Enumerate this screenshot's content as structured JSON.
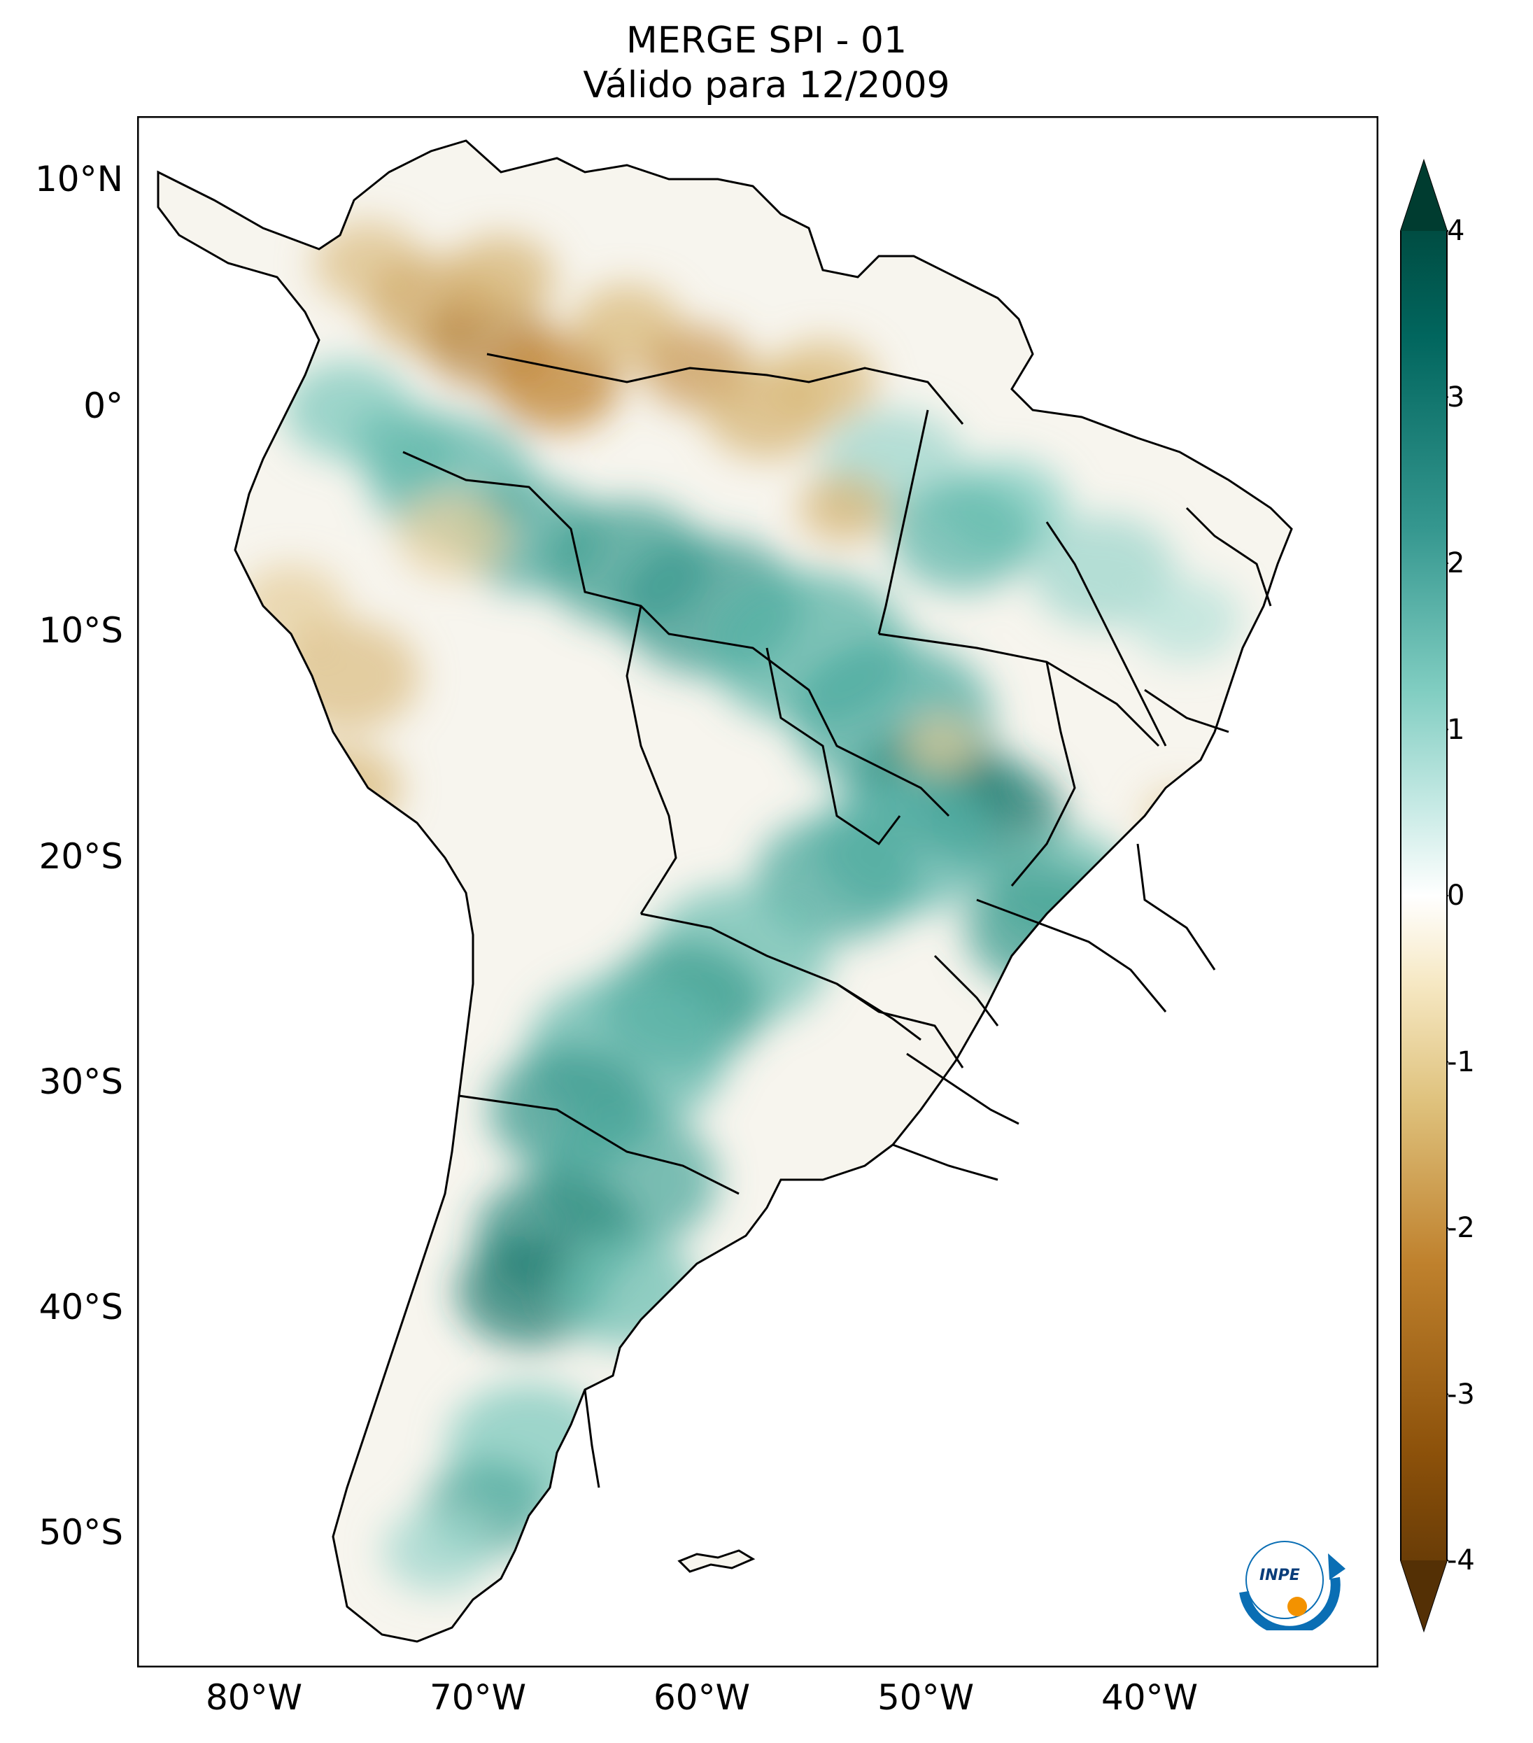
{
  "title": {
    "line1": "MERGE   SPI - 01",
    "line2": "Válido para 12/2009"
  },
  "map": {
    "region": "South America",
    "lat_range": [
      -56,
      12.5
    ],
    "lon_range": [
      -85,
      -29.5
    ],
    "lat_ticks": [
      {
        "value": 10,
        "label": "10°N"
      },
      {
        "value": 0,
        "label": "0°"
      },
      {
        "value": -10,
        "label": "10°S"
      },
      {
        "value": -20,
        "label": "20°S"
      },
      {
        "value": -30,
        "label": "30°S"
      },
      {
        "value": -40,
        "label": "40°S"
      },
      {
        "value": -50,
        "label": "50°S"
      }
    ],
    "lon_ticks": [
      {
        "value": -80,
        "label": "80°W"
      },
      {
        "value": -70,
        "label": "70°W"
      },
      {
        "value": -60,
        "label": "60°W"
      },
      {
        "value": -50,
        "label": "50°W"
      },
      {
        "value": -40,
        "label": "40°W"
      }
    ]
  },
  "colorbar": {
    "colormap": "BrBG",
    "range": [
      -4,
      4
    ],
    "extend": "both",
    "ticks": [
      {
        "value": 4,
        "label": "4"
      },
      {
        "value": 3,
        "label": "3"
      },
      {
        "value": 2,
        "label": "2"
      },
      {
        "value": 1,
        "label": "1"
      },
      {
        "value": 0,
        "label": "0"
      },
      {
        "value": -1,
        "label": "-1"
      },
      {
        "value": -2,
        "label": "-2"
      },
      {
        "value": -3,
        "label": "-3"
      },
      {
        "value": -4,
        "label": "-4"
      }
    ],
    "colors": [
      "#543005",
      "#8c510a",
      "#bf812d",
      "#dfc27d",
      "#f6e8c3",
      "#ffffff",
      "#c7eae5",
      "#80cdc1",
      "#35978f",
      "#01665e",
      "#003c30"
    ]
  },
  "logo": {
    "text": "INPE",
    "colors": {
      "arc": "#0a6eb4",
      "dot": "#f39200"
    }
  }
}
